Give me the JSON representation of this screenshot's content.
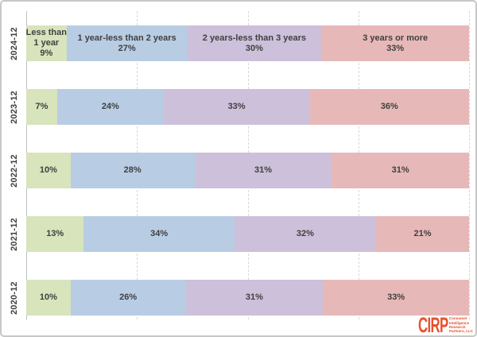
{
  "chart_data": {
    "type": "bar",
    "orientation": "horizontal-stacked",
    "title": "",
    "xlabel": "",
    "ylabel": "",
    "xlim_pct": [
      0,
      100
    ],
    "grid": "dashed-vertical",
    "gridlines_pct": [
      25,
      50,
      75,
      100
    ],
    "legend_position": "labels-inside-first-row",
    "value_suffix": "%",
    "label_color": "#404040",
    "categories": [
      "2024-12",
      "2023-12",
      "2022-12",
      "2021-12",
      "2020-12"
    ],
    "series": [
      {
        "name": "Less than 1 year",
        "first_row_label_lines": [
          "Less than",
          "1 year"
        ],
        "color": "#d7e4bc",
        "values": [
          9,
          7,
          10,
          13,
          10
        ]
      },
      {
        "name": "1 year-less than 2 years",
        "first_row_label_lines": [
          "1 year-less than 2 years"
        ],
        "color": "#b8cce4",
        "values": [
          27,
          24,
          28,
          34,
          26
        ]
      },
      {
        "name": "2 years-less than 3 years",
        "first_row_label_lines": [
          "2 years-less than 3 years"
        ],
        "color": "#ccc0da",
        "values": [
          30,
          33,
          31,
          32,
          31
        ]
      },
      {
        "name": "3 years or more",
        "first_row_label_lines": [
          "3 years or more"
        ],
        "color": "#e6b9b8",
        "values": [
          33,
          36,
          31,
          21,
          33
        ]
      }
    ]
  },
  "logo": {
    "acronym": "CIRP",
    "lines": [
      "Consumer",
      "Intelligence",
      "Research",
      "Partners, LLC"
    ],
    "color": "#e8502d"
  }
}
